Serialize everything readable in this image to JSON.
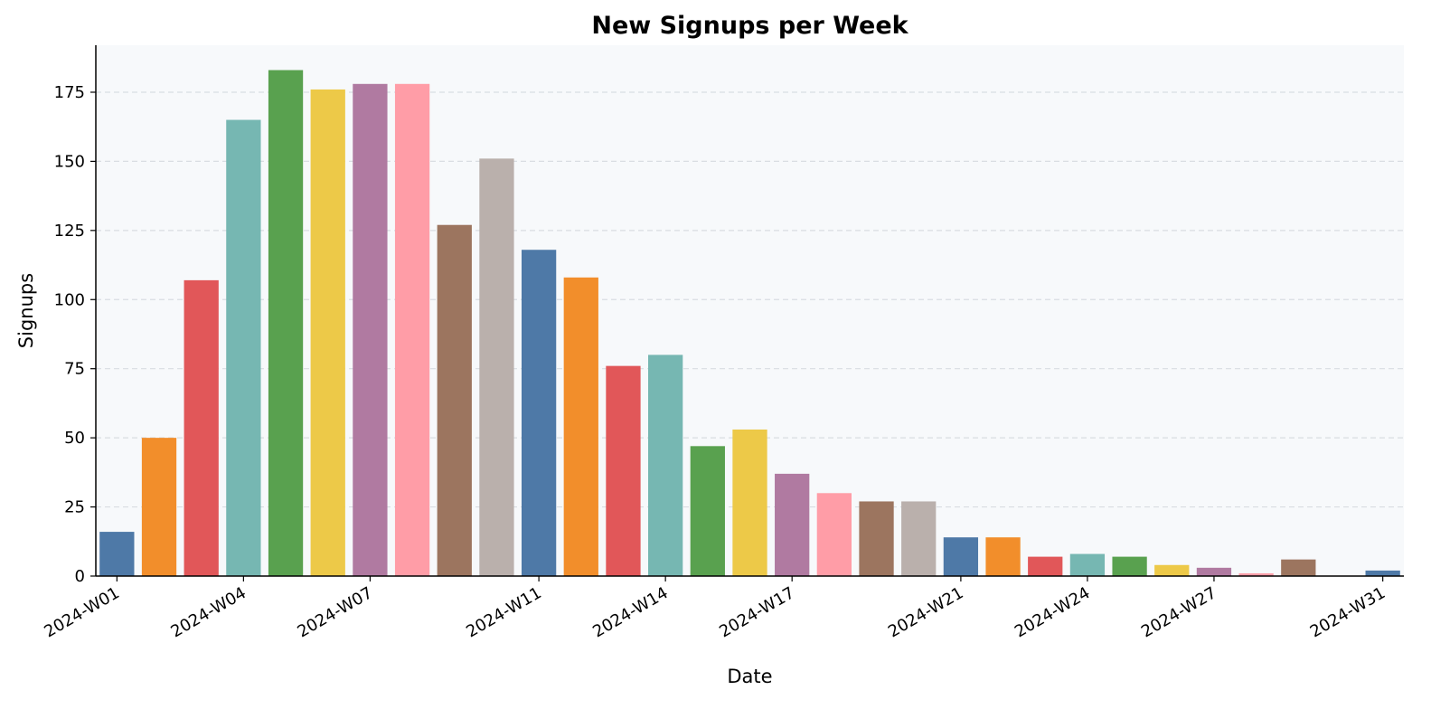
{
  "chart_data": {
    "type": "bar",
    "title": "New Signups per Week",
    "xlabel": "Date",
    "ylabel": "Signups",
    "ylim": [
      0,
      192
    ],
    "yticks": [
      0,
      25,
      50,
      75,
      100,
      125,
      150,
      175
    ],
    "grid": "horizontal dashed",
    "categories": [
      "2024-W01",
      "2024-W02",
      "2024-W03",
      "2024-W04",
      "2024-W05",
      "2024-W06",
      "2024-W07",
      "2024-W08",
      "2024-W09",
      "2024-W10",
      "2024-W11",
      "2024-W12",
      "2024-W13",
      "2024-W14",
      "2024-W15",
      "2024-W16",
      "2024-W17",
      "2024-W18",
      "2024-W19",
      "2024-W20",
      "2024-W21",
      "2024-W22",
      "2024-W23",
      "2024-W24",
      "2024-W25",
      "2024-W26",
      "2024-W27",
      "2024-W28",
      "2024-W29",
      "2024-W30",
      "2024-W31"
    ],
    "values": [
      16,
      50,
      107,
      165,
      183,
      176,
      178,
      178,
      127,
      151,
      118,
      108,
      76,
      80,
      47,
      53,
      37,
      30,
      27,
      27,
      14,
      14,
      7,
      8,
      7,
      4,
      3,
      1,
      6,
      0,
      2
    ],
    "xtick_labels_shown": [
      "2024-W01",
      "2024-W04",
      "2024-W07",
      "2024-W11",
      "2024-W14",
      "2024-W17",
      "2024-W21",
      "2024-W24",
      "2024-W27",
      "2024-W31"
    ],
    "colors": [
      "#4e79a7",
      "#f28e2b",
      "#e15759",
      "#76b7b2",
      "#59a14f",
      "#edc948",
      "#b07aa1",
      "#ff9da7",
      "#9c755f",
      "#bab0ac"
    ],
    "background": "#f7f9fb"
  }
}
